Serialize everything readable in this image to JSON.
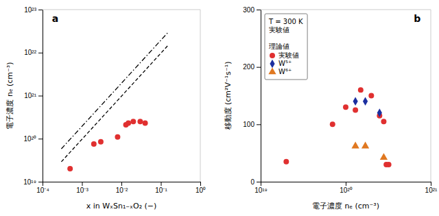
{
  "chart_data": [
    {
      "type": "scatter",
      "title": "a",
      "x_label": "x in WₓSn₁₋ₓO₂ (−)",
      "y_label": "電子濃度 nₑ (cm⁻³)",
      "log": true,
      "xlim": [
        0.0001,
        1
      ],
      "ylim": [
        1e+19,
        1e+23
      ],
      "xticks": [
        {
          "value": 0.0001,
          "label": "10⁻⁴"
        },
        {
          "value": 0.001,
          "label": "10⁻³"
        },
        {
          "value": 0.01,
          "label": "10⁻²"
        },
        {
          "value": 0.1,
          "label": "10⁻¹"
        },
        {
          "value": 1,
          "label": "10⁰"
        }
      ],
      "yticks": [
        {
          "value": 1e+19,
          "label": "10¹⁹"
        },
        {
          "value": 1e+20,
          "label": "10²⁰"
        },
        {
          "value": 1e+21,
          "label": "10²¹"
        },
        {
          "value": 1e+22,
          "label": "10²²"
        },
        {
          "value": 1e+23,
          "label": "10²³"
        }
      ],
      "series": [
        {
          "type": "line",
          "color": "black",
          "line_style": "dashdot",
          "x": [
            0.0003,
            0.15
          ],
          "values": [
            5.82e+19,
            2.91e+22
          ]
        },
        {
          "type": "line",
          "color": "black",
          "line_style": "dashed",
          "x": [
            0.0003,
            0.15
          ],
          "values": [
            2.91e+19,
            1.455e+22
          ]
        },
        {
          "type": "scatter",
          "color": "#e03030",
          "marker": "circle",
          "x": [
            0.0005,
            0.002,
            0.003,
            0.008,
            0.013,
            0.015,
            0.02,
            0.03,
            0.04
          ],
          "values": [
            2e+19,
            7.5e+19,
            8.5e+19,
            1.1e+20,
            2.1e+20,
            2.3e+20,
            2.5e+20,
            2.5e+20,
            2.3e+20
          ]
        }
      ]
    },
    {
      "type": "scatter",
      "title": "b",
      "x_label": "電子濃度 nₑ (cm⁻³)",
      "y_label": "移動度 (cm²V⁻¹s⁻¹)",
      "log": "x",
      "xlim": [
        1e+19,
        1e+21
      ],
      "ylim": [
        0,
        300
      ],
      "xticks": [
        {
          "value": 1e+19,
          "label": "10¹⁹"
        },
        {
          "value": 1e+20,
          "label": "10²⁰"
        },
        {
          "value": 1e+21,
          "label": "10²¹"
        }
      ],
      "yticks": [
        0,
        100,
        200,
        300
      ],
      "legend": "upper left",
      "legend_title": "T = 300 K\n実験値\n\n理論値",
      "series": [
        {
          "name": "実験値",
          "color": "#e03030",
          "marker": "circle",
          "x": [
            2e+19,
            7e+19,
            1e+20,
            1.3e+20,
            1.5e+20,
            2e+20,
            2.5e+20,
            2.8e+20,
            3e+20,
            3.2e+20
          ],
          "values": [
            35,
            100,
            130,
            125,
            160,
            150,
            115,
            105,
            30,
            30
          ]
        },
        {
          "name": "W⁵⁺",
          "color": "#1c2fa0",
          "marker": "diamond",
          "x": [
            1.3e+20,
            1.7e+20,
            2.5e+20
          ],
          "values": [
            140,
            140,
            120
          ]
        },
        {
          "name": "W⁶⁺",
          "color": "#e07820",
          "marker": "triangle",
          "x": [
            1.3e+20,
            1.7e+20,
            2.8e+20
          ],
          "values": [
            62,
            62,
            42
          ]
        }
      ]
    }
  ]
}
